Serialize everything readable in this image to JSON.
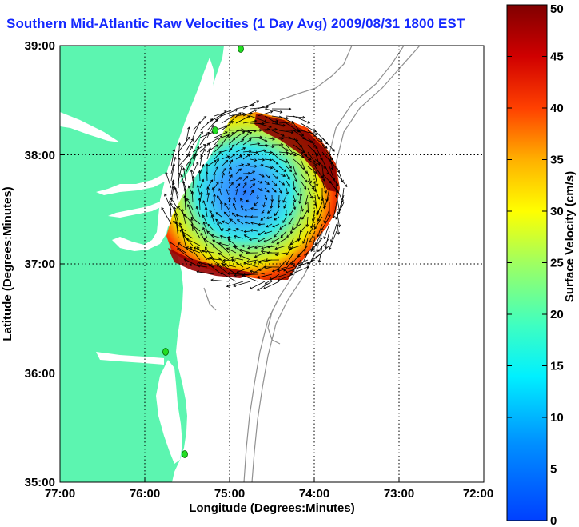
{
  "title": "Southern Mid-Atlantic Raw Velocities (1 Day Avg) 2009/08/31 1800 EST",
  "map": {
    "x_axis_label": "Longitude (Degrees:Minutes)",
    "y_axis_label": "Latitude (Degrees:Minutes)",
    "x_ticks": [
      "77:00",
      "76:00",
      "75:00",
      "74:00",
      "73:00",
      "72:00"
    ],
    "y_ticks": [
      "39:00",
      "38:00",
      "37:00",
      "36:00",
      "35:00"
    ],
    "lon_range": [
      -77,
      -72
    ],
    "lat_range": [
      35,
      39
    ],
    "grid": "dotted",
    "colors": {
      "land": "#5cf5b0",
      "water": "#ffffff",
      "bathymetry": "#909090",
      "vectors": "#000000",
      "stations": "#00dd00"
    }
  },
  "colorbar": {
    "label": "Surface Velocity (cm/s)",
    "ticks": [
      "50",
      "45",
      "40",
      "35",
      "30",
      "25",
      "20",
      "15",
      "10",
      "5",
      "0"
    ],
    "range": [
      0,
      50
    ],
    "colormap": "jet"
  }
}
